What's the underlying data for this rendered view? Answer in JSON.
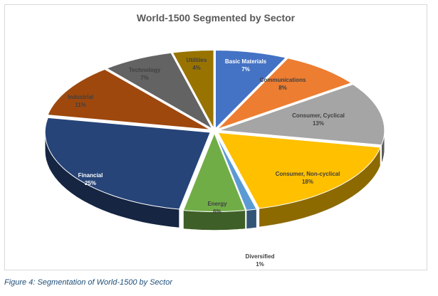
{
  "chart_data": {
    "type": "pie",
    "title": "World-1500 Segmented by Sector",
    "categories": [
      "Basic Materials",
      "Communications",
      "Consumer, Cyclical",
      "Consumer, Non-cyclical",
      "Diversified",
      "Energy",
      "Financial",
      "Industrial",
      "Technology",
      "Utilities"
    ],
    "values": [
      7,
      8,
      13,
      18,
      1,
      6,
      25,
      11,
      7,
      4
    ],
    "value_labels": [
      "7%",
      "8%",
      "13%",
      "18%",
      "1%",
      "6%",
      "25%",
      "11%",
      "7%",
      "4%"
    ],
    "colors": [
      "#4472c4",
      "#ed7d31",
      "#a5a5a5",
      "#ffc000",
      "#5b9bd5",
      "#70ad47",
      "#264478",
      "#9e480e",
      "#636363",
      "#997300"
    ],
    "label_colors": [
      "#ffffff",
      "#404040",
      "#404040",
      "#404040",
      "#404040",
      "#404040",
      "#ffffff",
      "#404040",
      "#404040",
      "#404040"
    ],
    "legend": "none",
    "style": "3d-exploded"
  },
  "caption": "Figure 4: Segmentation of World-1500 by Sector"
}
